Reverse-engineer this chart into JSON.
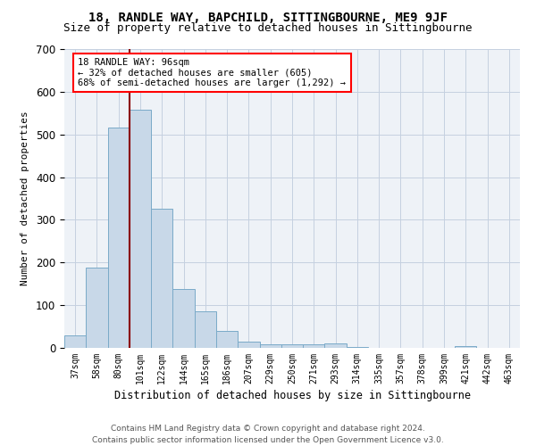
{
  "title1": "18, RANDLE WAY, BAPCHILD, SITTINGBOURNE, ME9 9JF",
  "title2": "Size of property relative to detached houses in Sittingbourne",
  "xlabel": "Distribution of detached houses by size in Sittingbourne",
  "ylabel": "Number of detached properties",
  "bar_color": "#c8d8e8",
  "bar_edge_color": "#7aaac8",
  "bins": [
    "37sqm",
    "58sqm",
    "80sqm",
    "101sqm",
    "122sqm",
    "144sqm",
    "165sqm",
    "186sqm",
    "207sqm",
    "229sqm",
    "250sqm",
    "271sqm",
    "293sqm",
    "314sqm",
    "335sqm",
    "357sqm",
    "378sqm",
    "399sqm",
    "421sqm",
    "442sqm",
    "463sqm"
  ],
  "values": [
    30,
    188,
    516,
    558,
    326,
    138,
    85,
    40,
    15,
    8,
    8,
    8,
    10,
    2,
    0,
    0,
    0,
    0,
    5,
    0,
    0
  ],
  "annotation_text": "18 RANDLE WAY: 96sqm\n← 32% of detached houses are smaller (605)\n68% of semi-detached houses are larger (1,292) →",
  "annotation_box_color": "white",
  "annotation_box_edge_color": "red",
  "vline_color": "#8b0000",
  "vline_pos": 2.5,
  "ylim": [
    0,
    700
  ],
  "yticks": [
    0,
    100,
    200,
    300,
    400,
    500,
    600,
    700
  ],
  "footer": "Contains HM Land Registry data © Crown copyright and database right 2024.\nContains public sector information licensed under the Open Government Licence v3.0.",
  "bg_color": "#eef2f7",
  "grid_color": "#c5d0e0",
  "title1_fontsize": 10,
  "title2_fontsize": 9
}
